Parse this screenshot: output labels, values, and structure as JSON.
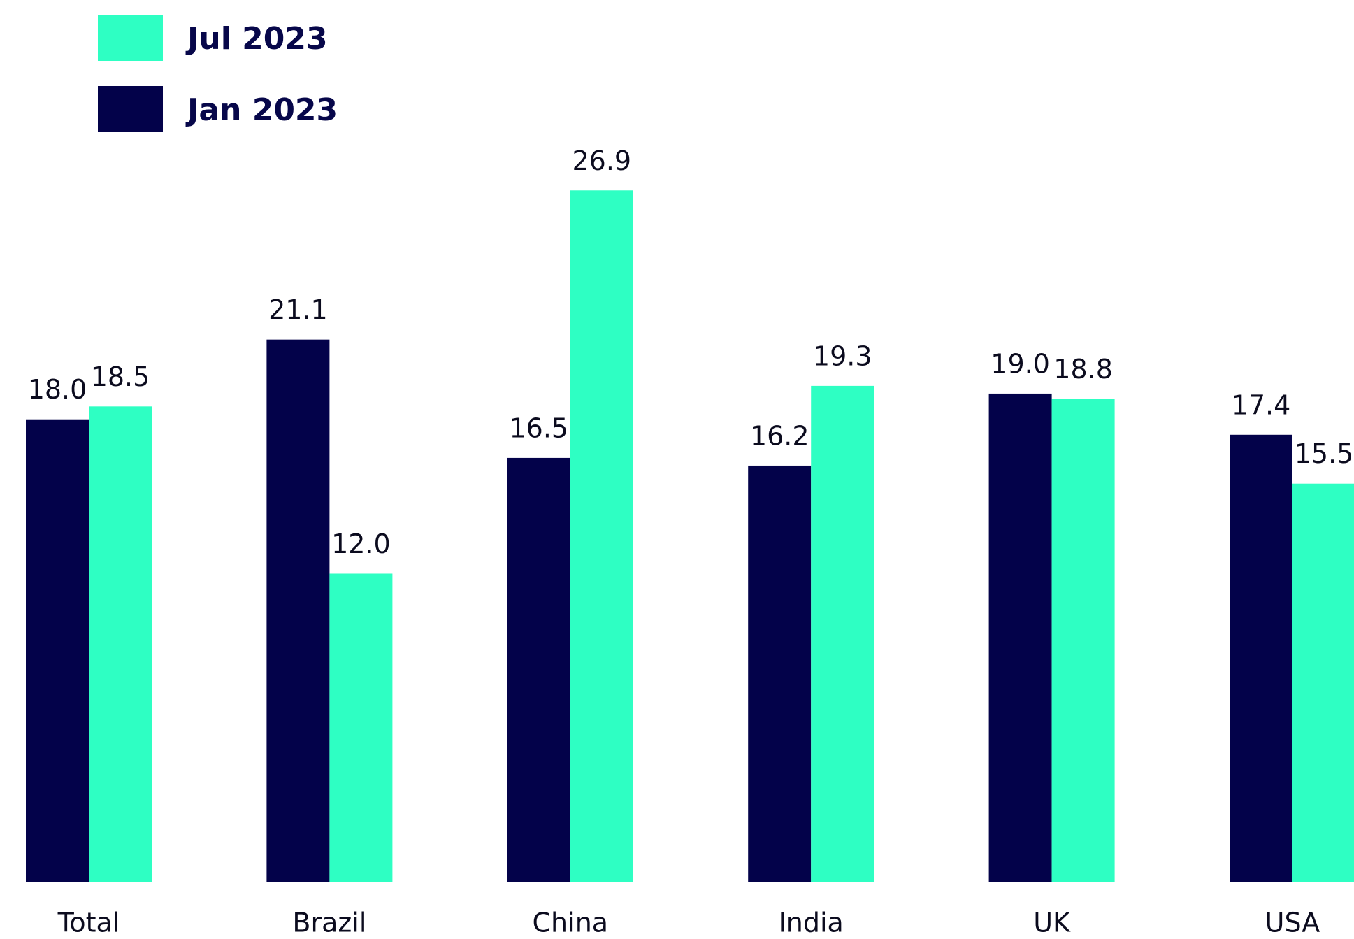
{
  "chart_data": {
    "type": "bar",
    "categories": [
      "Total",
      "Brazil",
      "China",
      "India",
      "UK",
      "USA"
    ],
    "series": [
      {
        "name": "Jan 2023",
        "color": "#03024a",
        "values": [
          18.0,
          21.1,
          16.5,
          16.2,
          19.0,
          17.4
        ],
        "value_labels": [
          "18.0",
          "21.1",
          "16.5",
          "16.2",
          "19.0",
          "17.4"
        ]
      },
      {
        "name": "Jul 2023",
        "color": "#2effc3",
        "values": [
          18.5,
          12.0,
          26.9,
          19.3,
          18.8,
          15.5
        ],
        "value_labels": [
          "18.5",
          "12.0",
          "26.9",
          "19.3",
          "18.8",
          "15.5"
        ]
      }
    ],
    "ylim": [
      0,
      34.3
    ],
    "grid": false
  }
}
